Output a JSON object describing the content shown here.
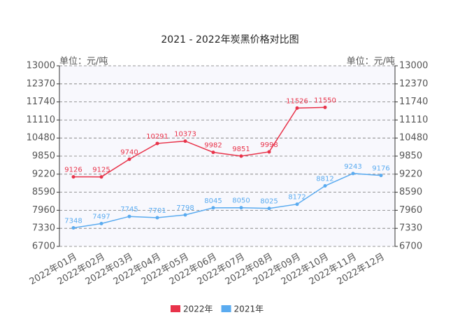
{
  "chart_data": {
    "type": "line",
    "title": "2021 - 2022年炭黑价格对比图",
    "y_unit_label": "单位：元/吨",
    "categories": [
      "2022年01月",
      "2022年02月",
      "2022年03月",
      "2022年04月",
      "2022年05月",
      "2022年06月",
      "2022年07月",
      "2022年08月",
      "2022年09月",
      "2022年10月",
      "2022年11月",
      "2022年12月"
    ],
    "series": [
      {
        "name": "2022年",
        "color": "#e8334a",
        "values": [
          9126,
          9125,
          9740,
          10291,
          10373,
          9982,
          9851,
          9998,
          11526,
          11550,
          null,
          null
        ]
      },
      {
        "name": "2021年",
        "color": "#5aabf0",
        "values": [
          7348,
          7497,
          7745,
          7701,
          7798,
          8045,
          8050,
          8025,
          8172,
          8812,
          9243,
          9176
        ]
      }
    ],
    "ylim": [
      6700,
      13000
    ],
    "yticks": [
      6700,
      7330,
      7960,
      8590,
      9220,
      9850,
      10480,
      11110,
      11740,
      12370,
      13000
    ],
    "grid": true
  }
}
